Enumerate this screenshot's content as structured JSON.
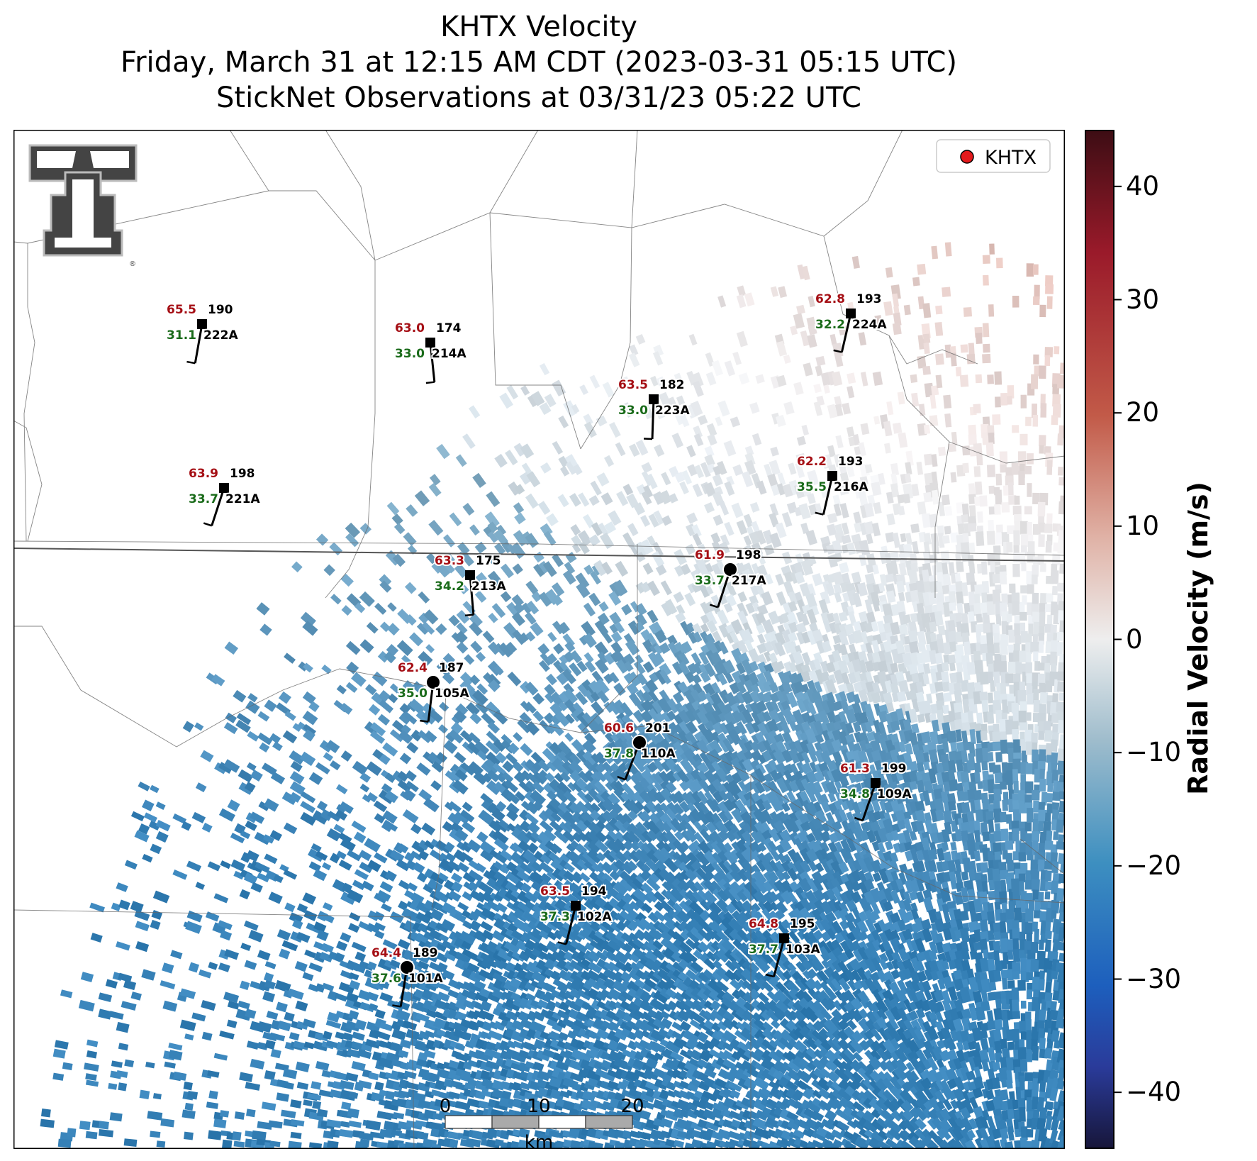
{
  "title": {
    "line1": "KHTX Velocity",
    "line2": "Friday, March 31 at 12:15 AM CDT (2023-03-31 05:15 UTC)",
    "line3": "StickNet Observations at 03/31/23 05:22 UTC"
  },
  "legend": {
    "label": "KHTX",
    "marker_color": "#e31a1c"
  },
  "colorbar": {
    "label": "Radial Velocity (m/s)",
    "min": -45,
    "max": 45,
    "ticks": [
      "40",
      "30",
      "20",
      "10",
      "0",
      "−10",
      "−20",
      "−30",
      "−40"
    ],
    "tick_values": [
      40,
      30,
      20,
      10,
      0,
      -10,
      -20,
      -30,
      -40
    ],
    "colors": {
      "neg_dark": "#1a1a40",
      "neg": "#2a7fbf",
      "zero": "#f0f0f0",
      "pos": "#c25a48",
      "pos_dark": "#3d0d14"
    }
  },
  "scalebar": {
    "ticks": [
      "0",
      "10",
      "20"
    ],
    "unit": "km"
  },
  "logo": {
    "name": "texas-tech-logo",
    "text": "TT"
  },
  "stations": [
    {
      "id": "222A",
      "temp": "65.5",
      "dew": "31.1",
      "dir": "190",
      "type": "square"
    },
    {
      "id": "214A",
      "temp": "63.0",
      "dew": "33.0",
      "dir": "174",
      "type": "square"
    },
    {
      "id": "224A",
      "temp": "62.8",
      "dew": "32.2",
      "dir": "193",
      "type": "square"
    },
    {
      "id": "223A",
      "temp": "63.5",
      "dew": "33.0",
      "dir": "182",
      "type": "square"
    },
    {
      "id": "221A",
      "temp": "63.9",
      "dew": "33.7",
      "dir": "198",
      "type": "square"
    },
    {
      "id": "216A",
      "temp": "62.2",
      "dew": "35.5",
      "dir": "193",
      "type": "square"
    },
    {
      "id": "213A",
      "temp": "63.3",
      "dew": "34.2",
      "dir": "175",
      "type": "square"
    },
    {
      "id": "217A",
      "temp": "61.9",
      "dew": "33.7",
      "dir": "198",
      "type": "circle"
    },
    {
      "id": "105A",
      "temp": "62.4",
      "dew": "35.0",
      "dir": "187",
      "type": "circle"
    },
    {
      "id": "110A",
      "temp": "60.6",
      "dew": "37.8",
      "dir": "201",
      "type": "circle"
    },
    {
      "id": "109A",
      "temp": "61.3",
      "dew": "34.8",
      "dir": "199",
      "type": "square"
    },
    {
      "id": "102A",
      "temp": "63.5",
      "dew": "37.3",
      "dir": "194",
      "type": "square"
    },
    {
      "id": "103A",
      "temp": "64.8",
      "dew": "37.7",
      "dir": "195",
      "type": "square"
    },
    {
      "id": "101A",
      "temp": "64.4",
      "dew": "37.6",
      "dir": "189",
      "type": "circle"
    }
  ]
}
